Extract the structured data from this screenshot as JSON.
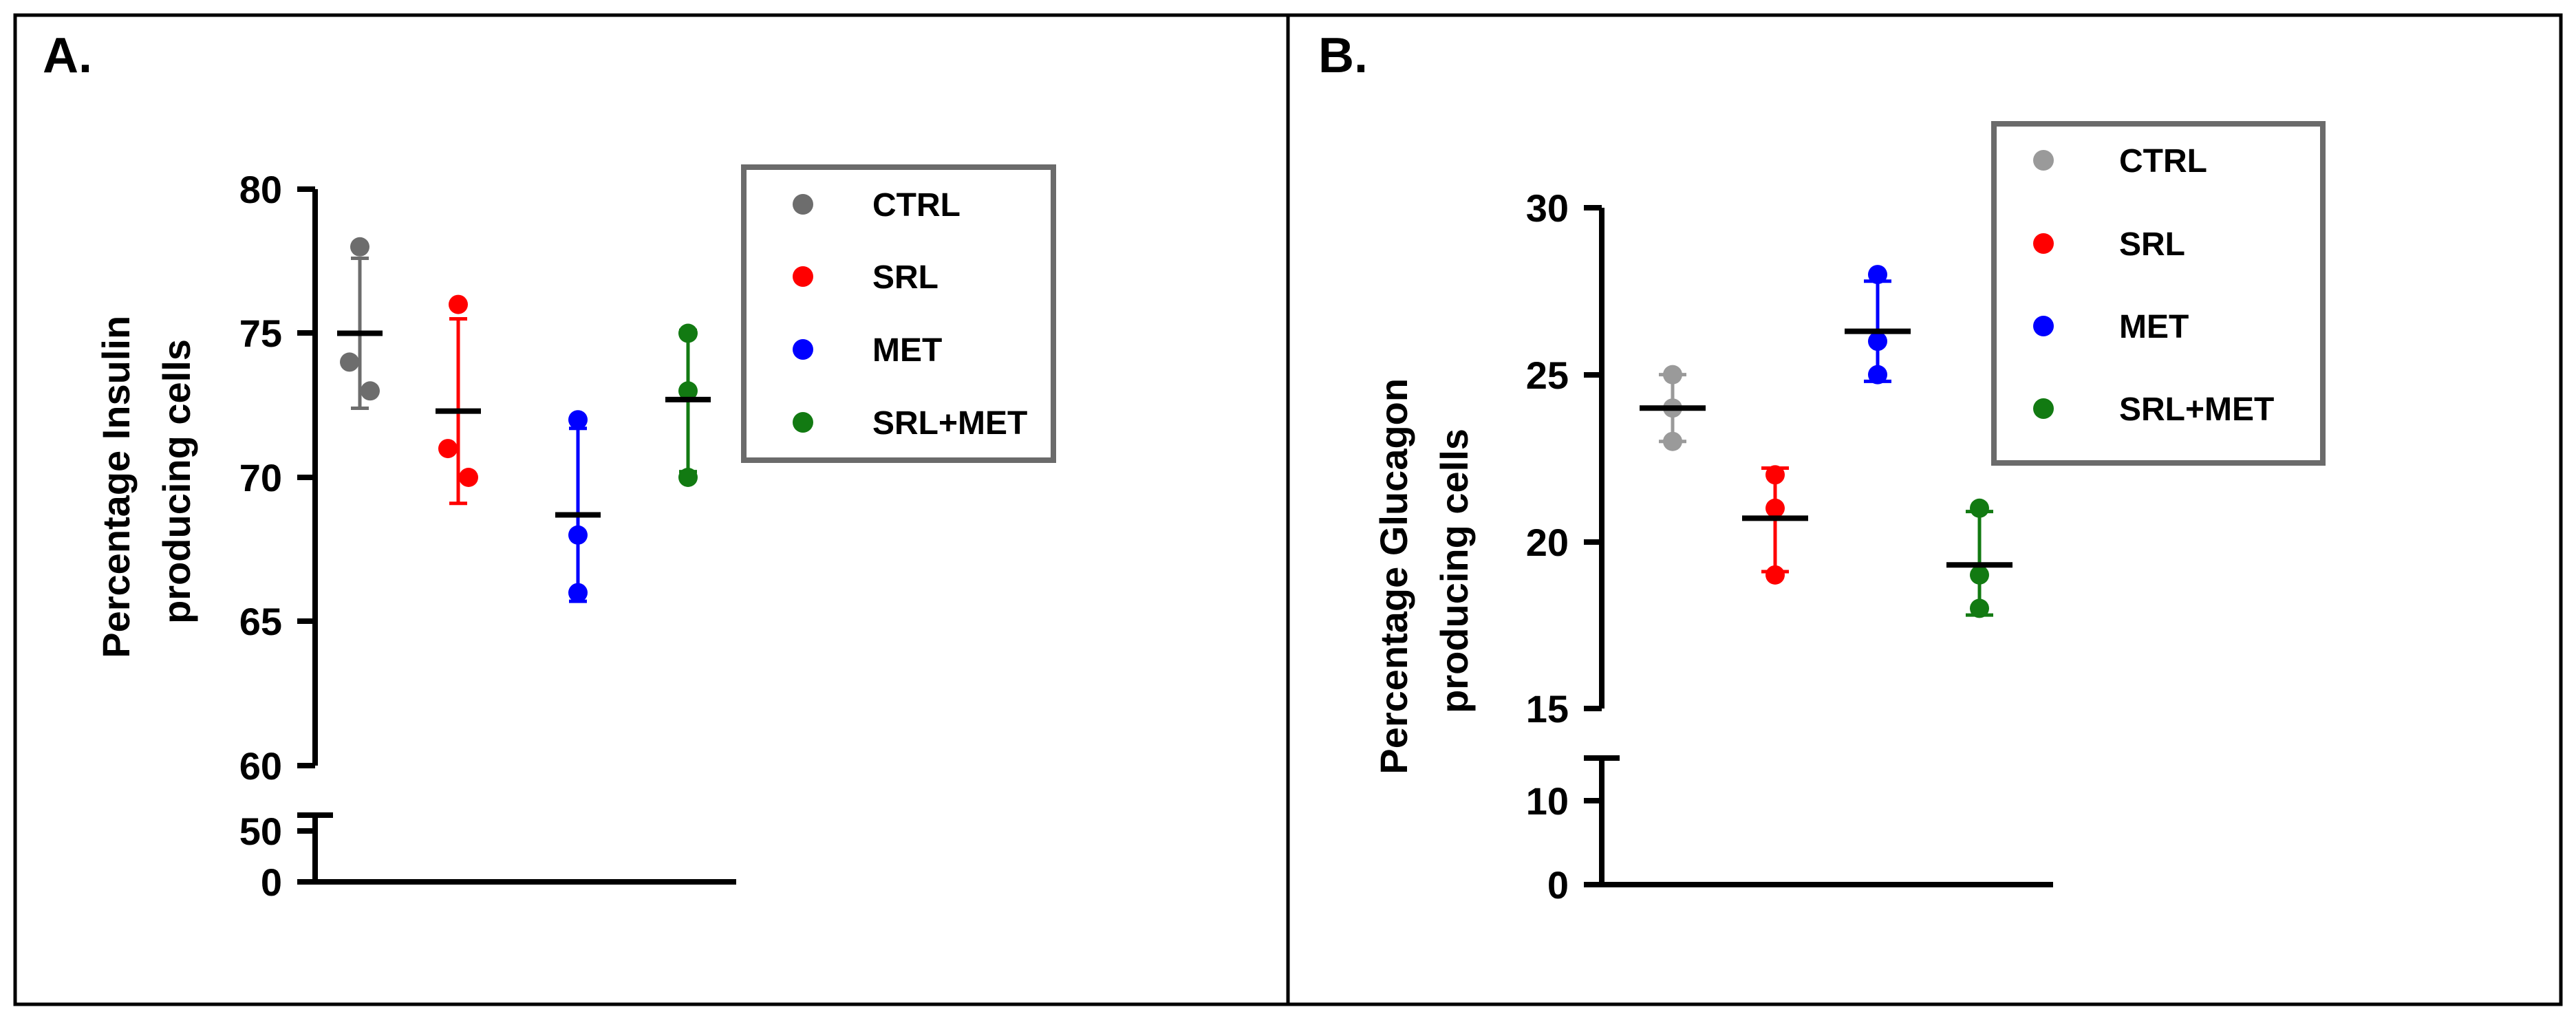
{
  "colors": {
    "ctrl": "#6d6d6d",
    "ctrl_b": "#9a9a9a",
    "srl": "#ff0000",
    "met": "#0000ff",
    "srl_met": "#127a12",
    "frame": "#000000",
    "legend_border": "#6b6b6b"
  },
  "chart_data": [
    {
      "panel": "A.",
      "type": "scatter",
      "categories": [
        "CTRL",
        "SRL",
        "MET",
        "SRL+MET"
      ],
      "color_keys": [
        "ctrl",
        "srl",
        "met",
        "srl_met"
      ],
      "ylabel_line1": "Percentage Insulin",
      "ylabel_line2": "producing cells",
      "y_segments": [
        {
          "range": [
            60,
            80
          ],
          "ticks": [
            "60",
            "65",
            "70",
            "75",
            "80"
          ]
        },
        {
          "range": [
            0,
            55
          ],
          "ticks": [
            "0",
            "50"
          ]
        }
      ],
      "points": [
        [
          78,
          74,
          73
        ],
        [
          76,
          71,
          70
        ],
        [
          72,
          68,
          66
        ],
        [
          75,
          73,
          70
        ]
      ],
      "means": [
        75.0,
        72.3,
        68.7,
        72.7
      ],
      "error": [
        [
          72.4,
          77.6
        ],
        [
          69.1,
          75.5
        ],
        [
          65.7,
          71.7
        ],
        [
          70.2,
          75.1
        ]
      ],
      "legend": [
        "CTRL",
        "SRL",
        "MET",
        "SRL+MET"
      ],
      "legend_position": "top-right"
    },
    {
      "panel": "B.",
      "type": "scatter",
      "categories": [
        "CTRL",
        "SRL",
        "MET",
        "SRL+MET"
      ],
      "color_keys": [
        "ctrl_b",
        "srl",
        "met",
        "srl_met"
      ],
      "ylabel_line1": "Percentage Glucagon",
      "ylabel_line2": "producing cells",
      "y_segments": [
        {
          "range": [
            15,
            30
          ],
          "ticks": [
            "15",
            "20",
            "25",
            "30"
          ]
        },
        {
          "range": [
            0,
            12
          ],
          "ticks": [
            "0",
            "10"
          ]
        }
      ],
      "points": [
        [
          25,
          24,
          23
        ],
        [
          22,
          21,
          19
        ],
        [
          28,
          26,
          25
        ],
        [
          21,
          19,
          18
        ]
      ],
      "means": [
        24.0,
        20.7,
        26.3,
        19.3
      ],
      "error": [
        [
          23.0,
          25.0
        ],
        [
          19.1,
          22.2
        ],
        [
          24.8,
          27.8
        ],
        [
          17.8,
          20.9
        ]
      ],
      "legend": [
        "CTRL",
        "SRL",
        "MET",
        "SRL+MET"
      ],
      "legend_position": "top-right"
    }
  ]
}
